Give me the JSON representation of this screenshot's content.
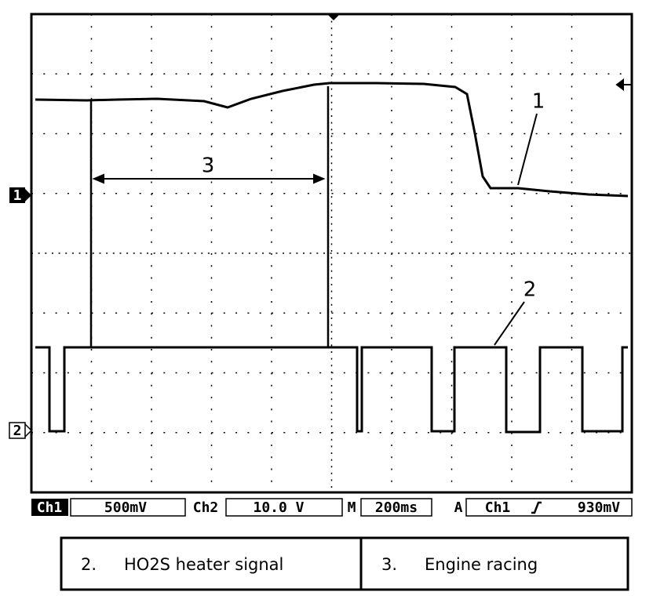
{
  "screen": {
    "channel_markers": [
      "1",
      "2"
    ],
    "callouts": {
      "trace1": "1",
      "trace2": "2",
      "interval": "3"
    }
  },
  "status": {
    "ch1": "Ch1",
    "ch1_scale": "500mV",
    "ch2": "Ch2",
    "ch2_scale": "10.0 V",
    "timebase_label": "M",
    "timebase": "200ms",
    "trigger_label": "A",
    "trigger_source": "Ch1",
    "trigger_level": "930mV"
  },
  "legend": {
    "rows": [
      [
        "2.",
        "HO2S heater signal"
      ],
      [
        "3.",
        "Engine racing"
      ]
    ]
  }
}
